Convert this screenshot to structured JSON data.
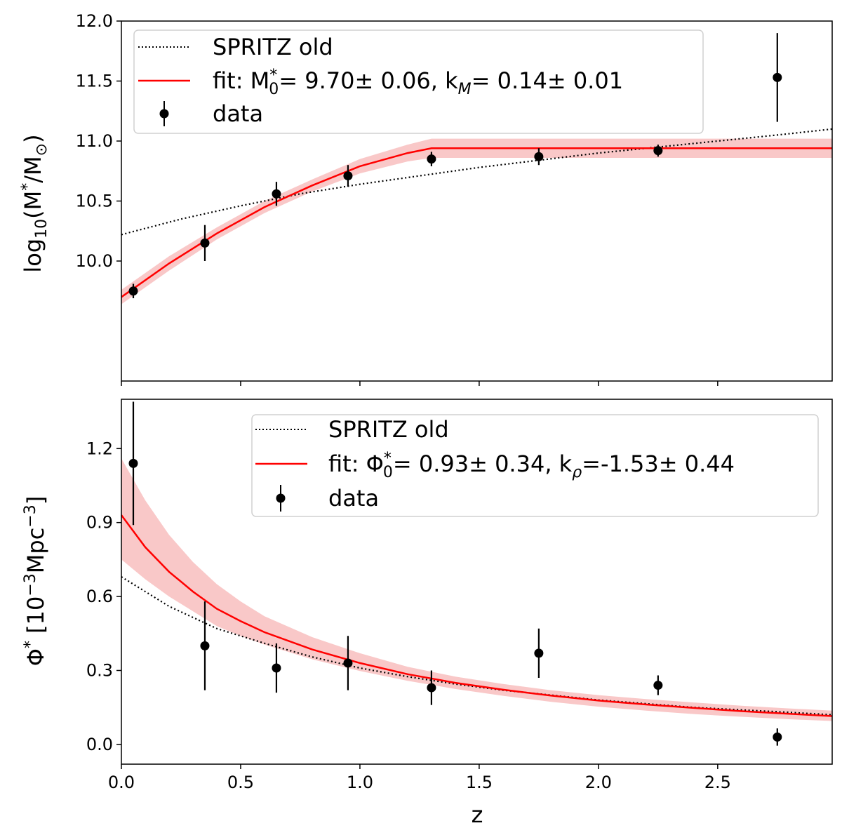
{
  "chart_data": [
    {
      "type": "line",
      "ylabel": "log10(M*/M⊙)",
      "xlim": [
        0.0,
        2.98
      ],
      "ylim": [
        9.0,
        12.0
      ],
      "yticks": [
        10.0,
        10.5,
        11.0,
        11.5,
        12.0
      ],
      "ytick_labels": [
        "10.0",
        "10.5",
        "11.0",
        "11.5",
        "12.0"
      ],
      "legend_location": "top-left",
      "legend": {
        "spritz": "SPRITZ old",
        "fit": "fit: M0*= 9.70± 0.06, kM= 0.14± 0.01",
        "data": "data"
      },
      "series": [
        {
          "name": "SPRITZ old",
          "style": "dotted",
          "color": "#000000",
          "x": [
            0.0,
            0.25,
            0.5,
            0.75,
            1.0,
            1.25,
            1.5,
            1.75,
            2.0,
            2.25,
            2.5,
            2.75,
            2.98
          ],
          "y": [
            10.22,
            10.35,
            10.46,
            10.56,
            10.64,
            10.71,
            10.78,
            10.84,
            10.9,
            10.95,
            11.0,
            11.05,
            11.1
          ]
        },
        {
          "name": "fit",
          "style": "solid",
          "color": "#ff0000",
          "band_color": "#f7b6b6",
          "x": [
            0.0,
            0.2,
            0.4,
            0.6,
            0.8,
            1.0,
            1.2,
            1.3,
            1.5,
            2.0,
            2.5,
            2.98
          ],
          "y": [
            9.7,
            9.98,
            10.23,
            10.45,
            10.63,
            10.79,
            10.9,
            10.94,
            10.94,
            10.94,
            10.94,
            10.94
          ],
          "band_halfwidth": [
            0.06,
            0.06,
            0.05,
            0.05,
            0.05,
            0.06,
            0.07,
            0.08,
            0.08,
            0.08,
            0.08,
            0.08
          ]
        },
        {
          "name": "data",
          "style": "errorbar",
          "color": "#000000",
          "x": [
            0.05,
            0.35,
            0.65,
            0.95,
            1.3,
            1.75,
            2.25,
            2.75
          ],
          "y": [
            9.75,
            10.15,
            10.56,
            10.71,
            10.85,
            10.87,
            10.92,
            11.53
          ],
          "yerr": [
            0.06,
            0.15,
            0.1,
            0.09,
            0.06,
            0.07,
            0.05,
            0.37
          ]
        }
      ]
    },
    {
      "type": "line",
      "xlabel": "z",
      "ylabel": "Φ* [10−3Mpc−3]",
      "xlim": [
        0.0,
        2.98
      ],
      "ylim": [
        -0.08,
        1.4
      ],
      "xticks": [
        0.0,
        0.5,
        1.0,
        1.5,
        2.0,
        2.5
      ],
      "xtick_labels": [
        "0.0",
        "0.5",
        "1.0",
        "1.5",
        "2.0",
        "2.5"
      ],
      "yticks": [
        0.0,
        0.3,
        0.6,
        0.9,
        1.2
      ],
      "ytick_labels": [
        "0.0",
        "0.3",
        "0.6",
        "0.9",
        "1.2"
      ],
      "legend_location": "top-right",
      "legend": {
        "spritz": "SPRITZ old",
        "fit": "fit: Φ0*= 0.93± 0.34, kρ=-1.53± 0.44",
        "data": "data"
      },
      "series": [
        {
          "name": "SPRITZ old",
          "style": "dotted",
          "color": "#000000",
          "x": [
            0.0,
            0.2,
            0.4,
            0.6,
            0.8,
            1.0,
            1.2,
            1.4,
            1.6,
            1.8,
            2.0,
            2.2,
            2.4,
            2.6,
            2.8,
            2.98
          ],
          "y": [
            0.68,
            0.56,
            0.47,
            0.41,
            0.355,
            0.31,
            0.275,
            0.245,
            0.22,
            0.2,
            0.18,
            0.165,
            0.15,
            0.14,
            0.13,
            0.12
          ]
        },
        {
          "name": "fit",
          "style": "solid",
          "color": "#ff0000",
          "band_color": "#f7b6b6",
          "x": [
            0.0,
            0.1,
            0.2,
            0.3,
            0.4,
            0.5,
            0.6,
            0.8,
            1.0,
            1.2,
            1.4,
            1.6,
            1.8,
            2.0,
            2.2,
            2.4,
            2.6,
            2.8,
            2.98
          ],
          "y": [
            0.93,
            0.8,
            0.7,
            0.62,
            0.55,
            0.5,
            0.455,
            0.385,
            0.33,
            0.285,
            0.25,
            0.222,
            0.198,
            0.178,
            0.162,
            0.148,
            0.135,
            0.124,
            0.115
          ],
          "band_lower": [
            0.75,
            0.67,
            0.6,
            0.54,
            0.48,
            0.44,
            0.405,
            0.345,
            0.298,
            0.258,
            0.225,
            0.197,
            0.173,
            0.153,
            0.137,
            0.123,
            0.112,
            0.102,
            0.095
          ],
          "band_upper": [
            1.16,
            0.99,
            0.85,
            0.74,
            0.65,
            0.58,
            0.52,
            0.435,
            0.37,
            0.315,
            0.275,
            0.245,
            0.22,
            0.2,
            0.184,
            0.17,
            0.157,
            0.146,
            0.137
          ]
        },
        {
          "name": "data",
          "style": "errorbar",
          "color": "#000000",
          "x": [
            0.05,
            0.35,
            0.65,
            0.95,
            1.3,
            1.75,
            2.25,
            2.75
          ],
          "y": [
            1.14,
            0.4,
            0.31,
            0.33,
            0.23,
            0.37,
            0.24,
            0.03
          ],
          "yerr": [
            0.25,
            0.18,
            0.1,
            0.11,
            0.07,
            0.1,
            0.04,
            0.035
          ]
        }
      ]
    }
  ]
}
